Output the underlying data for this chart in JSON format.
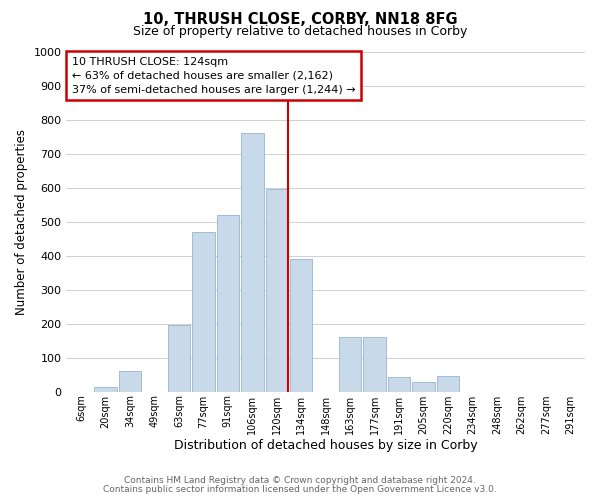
{
  "title": "10, THRUSH CLOSE, CORBY, NN18 8FG",
  "subtitle": "Size of property relative to detached houses in Corby",
  "xlabel": "Distribution of detached houses by size in Corby",
  "ylabel": "Number of detached properties",
  "bar_labels": [
    "6sqm",
    "20sqm",
    "34sqm",
    "49sqm",
    "63sqm",
    "77sqm",
    "91sqm",
    "106sqm",
    "120sqm",
    "134sqm",
    "148sqm",
    "163sqm",
    "177sqm",
    "191sqm",
    "205sqm",
    "220sqm",
    "234sqm",
    "248sqm",
    "262sqm",
    "277sqm",
    "291sqm"
  ],
  "bar_values": [
    0,
    14,
    62,
    0,
    196,
    470,
    518,
    760,
    597,
    390,
    0,
    160,
    160,
    42,
    27,
    46,
    0,
    0,
    0,
    0,
    0
  ],
  "bar_color": "#c8daea",
  "bar_edge_color": "#a0bcd4",
  "marker_line_x_label": "120sqm",
  "marker_line_color": "#cc0000",
  "annotation_text": "10 THRUSH CLOSE: 124sqm\n← 63% of detached houses are smaller (2,162)\n37% of semi-detached houses are larger (1,244) →",
  "annotation_box_color": "#ffffff",
  "annotation_box_edge_color": "#cc0000",
  "ylim": [
    0,
    1000
  ],
  "yticks": [
    0,
    100,
    200,
    300,
    400,
    500,
    600,
    700,
    800,
    900,
    1000
  ],
  "footer_line1": "Contains HM Land Registry data © Crown copyright and database right 2024.",
  "footer_line2": "Contains public sector information licensed under the Open Government Licence v3.0.",
  "bg_color": "#ffffff",
  "grid_color": "#d0d0d0"
}
